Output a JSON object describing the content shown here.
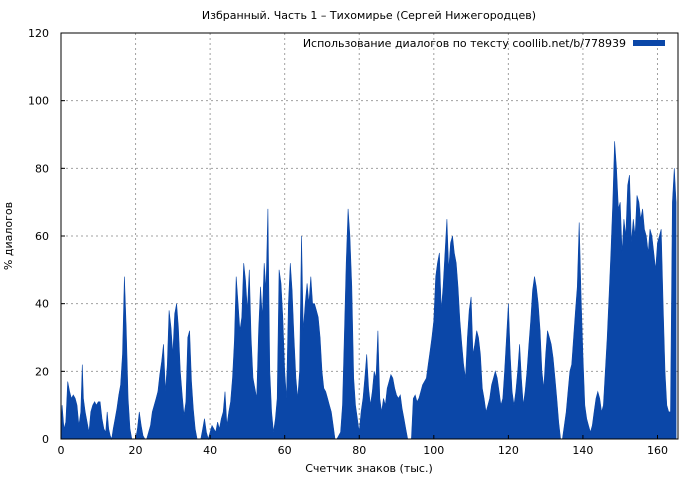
{
  "chart_data": {
    "type": "area",
    "title": "Избранный. Часть 1 – Тихомирье (Сергей Нижегородцев)",
    "xlabel": "Счетчик знаков (тыс.)",
    "ylabel": "% диалогов",
    "xlim": [
      0,
      165.5
    ],
    "ylim": [
      0,
      120
    ],
    "xticks": [
      "0",
      "20",
      "40",
      "60",
      "80",
      "100",
      "120",
      "140",
      "160"
    ],
    "yticks": [
      "0",
      "20",
      "40",
      "60",
      "80",
      "100",
      "120"
    ],
    "grid": true,
    "legend_position": "top-right",
    "series": [
      {
        "name": "Использование диалогов по тексту coollib.net/b/778939",
        "color": "#0b47a8",
        "points": [
          [
            0,
            0
          ],
          [
            0.3,
            10
          ],
          [
            0.8,
            3
          ],
          [
            1.3,
            5
          ],
          [
            1.8,
            17
          ],
          [
            2.3,
            14
          ],
          [
            2.8,
            12
          ],
          [
            3.3,
            13
          ],
          [
            3.8,
            12
          ],
          [
            4.3,
            10
          ],
          [
            4.8,
            4
          ],
          [
            5.3,
            8
          ],
          [
            5.7,
            22
          ],
          [
            6.0,
            12
          ],
          [
            6.5,
            8
          ],
          [
            7.0,
            5
          ],
          [
            7.5,
            2
          ],
          [
            8.0,
            8
          ],
          [
            8.5,
            10
          ],
          [
            9.0,
            11
          ],
          [
            9.5,
            10
          ],
          [
            10.0,
            11
          ],
          [
            10.5,
            11
          ],
          [
            11.0,
            6
          ],
          [
            11.5,
            3
          ],
          [
            12.0,
            2
          ],
          [
            12.4,
            8
          ],
          [
            12.8,
            3
          ],
          [
            13.2,
            1
          ],
          [
            13.6,
            0
          ],
          [
            14.0,
            3
          ],
          [
            14.5,
            6
          ],
          [
            15.0,
            9
          ],
          [
            15.5,
            13
          ],
          [
            16.0,
            16
          ],
          [
            16.5,
            25
          ],
          [
            17.0,
            48
          ],
          [
            17.5,
            33
          ],
          [
            18.0,
            12
          ],
          [
            18.5,
            3
          ],
          [
            19.0,
            0
          ],
          [
            20.0,
            0
          ],
          [
            20.5,
            3
          ],
          [
            21.0,
            8
          ],
          [
            21.5,
            4
          ],
          [
            22.0,
            1
          ],
          [
            22.5,
            0
          ],
          [
            23.0,
            0
          ],
          [
            23.5,
            2
          ],
          [
            24.0,
            4
          ],
          [
            24.5,
            8
          ],
          [
            25.0,
            10
          ],
          [
            25.5,
            12
          ],
          [
            26.0,
            14
          ],
          [
            26.5,
            19
          ],
          [
            27.0,
            23
          ],
          [
            27.5,
            28
          ],
          [
            28.0,
            14
          ],
          [
            28.5,
            22
          ],
          [
            29.0,
            38
          ],
          [
            29.5,
            33
          ],
          [
            30.0,
            25
          ],
          [
            30.5,
            37
          ],
          [
            31.0,
            40
          ],
          [
            31.5,
            33
          ],
          [
            32.0,
            20
          ],
          [
            32.5,
            13
          ],
          [
            33.0,
            7
          ],
          [
            33.5,
            11
          ],
          [
            34.0,
            30
          ],
          [
            34.5,
            32
          ],
          [
            35.0,
            17
          ],
          [
            35.5,
            9
          ],
          [
            36.0,
            3
          ],
          [
            36.5,
            0
          ],
          [
            37.5,
            0
          ],
          [
            38.0,
            3
          ],
          [
            38.5,
            6
          ],
          [
            39.0,
            2
          ],
          [
            39.5,
            0
          ],
          [
            40.0,
            2
          ],
          [
            40.5,
            4
          ],
          [
            41.0,
            3
          ],
          [
            41.5,
            2
          ],
          [
            42.0,
            5
          ],
          [
            42.5,
            3
          ],
          [
            43.0,
            6
          ],
          [
            43.5,
            8
          ],
          [
            44.0,
            14
          ],
          [
            44.5,
            4
          ],
          [
            45.0,
            8
          ],
          [
            45.5,
            11
          ],
          [
            46.0,
            18
          ],
          [
            46.5,
            29
          ],
          [
            47.0,
            48
          ],
          [
            47.5,
            40
          ],
          [
            48.0,
            32
          ],
          [
            48.5,
            36
          ],
          [
            49.0,
            52
          ],
          [
            49.5,
            47
          ],
          [
            50.0,
            38
          ],
          [
            50.5,
            50
          ],
          [
            51.0,
            30
          ],
          [
            51.5,
            18
          ],
          [
            52.0,
            15
          ],
          [
            52.5,
            12
          ],
          [
            53.0,
            32
          ],
          [
            53.5,
            45
          ],
          [
            54.0,
            36
          ],
          [
            54.5,
            52
          ],
          [
            55.0,
            44
          ],
          [
            55.5,
            68
          ],
          [
            56.0,
            20
          ],
          [
            56.5,
            8
          ],
          [
            57.0,
            2
          ],
          [
            57.5,
            6
          ],
          [
            58.0,
            12
          ],
          [
            58.5,
            50
          ],
          [
            59.0,
            46
          ],
          [
            59.5,
            36
          ],
          [
            60.0,
            20
          ],
          [
            60.5,
            12
          ],
          [
            61.0,
            40
          ],
          [
            61.5,
            52
          ],
          [
            62.0,
            44
          ],
          [
            62.5,
            30
          ],
          [
            63.0,
            18
          ],
          [
            63.5,
            12
          ],
          [
            64.0,
            20
          ],
          [
            64.5,
            60
          ],
          [
            65.0,
            32
          ],
          [
            65.5,
            40
          ],
          [
            66.0,
            46
          ],
          [
            66.5,
            40
          ],
          [
            67.0,
            48
          ],
          [
            67.5,
            40
          ],
          [
            68.0,
            40
          ],
          [
            68.5,
            38
          ],
          [
            69.0,
            36
          ],
          [
            69.5,
            30
          ],
          [
            70.0,
            20
          ],
          [
            70.5,
            15
          ],
          [
            71.0,
            14
          ],
          [
            71.5,
            12
          ],
          [
            72.0,
            10
          ],
          [
            72.5,
            8
          ],
          [
            73.0,
            4
          ],
          [
            73.5,
            0
          ],
          [
            74.0,
            0
          ],
          [
            75.0,
            2
          ],
          [
            75.5,
            10
          ],
          [
            76.0,
            30
          ],
          [
            76.5,
            52
          ],
          [
            77.0,
            68
          ],
          [
            77.5,
            60
          ],
          [
            78.0,
            45
          ],
          [
            78.5,
            18
          ],
          [
            79.0,
            10
          ],
          [
            79.5,
            6
          ],
          [
            80.0,
            2
          ],
          [
            80.5,
            8
          ],
          [
            81.0,
            12
          ],
          [
            81.5,
            18
          ],
          [
            82.0,
            25
          ],
          [
            82.5,
            15
          ],
          [
            83.0,
            10
          ],
          [
            83.5,
            14
          ],
          [
            84.0,
            20
          ],
          [
            84.5,
            18
          ],
          [
            85.0,
            32
          ],
          [
            85.5,
            12
          ],
          [
            86.0,
            8
          ],
          [
            86.5,
            12
          ],
          [
            87.0,
            10
          ],
          [
            87.5,
            15
          ],
          [
            88.0,
            17
          ],
          [
            88.5,
            19
          ],
          [
            89.0,
            18
          ],
          [
            89.5,
            15
          ],
          [
            90.0,
            13
          ],
          [
            90.5,
            12
          ],
          [
            91.0,
            13
          ],
          [
            91.5,
            9
          ],
          [
            92.0,
            6
          ],
          [
            92.5,
            3
          ],
          [
            93.0,
            0
          ],
          [
            94.0,
            0
          ],
          [
            94.5,
            12
          ],
          [
            95.0,
            13
          ],
          [
            95.5,
            11
          ],
          [
            96.0,
            12
          ],
          [
            96.5,
            14
          ],
          [
            97.0,
            16
          ],
          [
            97.5,
            17
          ],
          [
            98.0,
            18
          ],
          [
            98.5,
            22
          ],
          [
            99.0,
            26
          ],
          [
            99.5,
            30
          ],
          [
            100.0,
            35
          ],
          [
            100.5,
            48
          ],
          [
            101.0,
            52
          ],
          [
            101.5,
            55
          ],
          [
            102.0,
            38
          ],
          [
            102.5,
            45
          ],
          [
            103.0,
            55
          ],
          [
            103.5,
            65
          ],
          [
            104.0,
            50
          ],
          [
            104.5,
            58
          ],
          [
            105.0,
            60
          ],
          [
            105.5,
            55
          ],
          [
            106.0,
            52
          ],
          [
            106.5,
            45
          ],
          [
            107.0,
            35
          ],
          [
            107.5,
            28
          ],
          [
            108.0,
            22
          ],
          [
            108.5,
            18
          ],
          [
            109.0,
            30
          ],
          [
            109.5,
            38
          ],
          [
            110.0,
            42
          ],
          [
            110.5,
            25
          ],
          [
            111.0,
            28
          ],
          [
            111.5,
            32
          ],
          [
            112.0,
            30
          ],
          [
            112.5,
            25
          ],
          [
            113.0,
            15
          ],
          [
            113.5,
            12
          ],
          [
            114.0,
            8
          ],
          [
            114.5,
            10
          ],
          [
            115.0,
            12
          ],
          [
            115.5,
            16
          ],
          [
            116.0,
            18
          ],
          [
            116.5,
            20
          ],
          [
            117.0,
            18
          ],
          [
            117.5,
            14
          ],
          [
            118.0,
            10
          ],
          [
            118.5,
            12
          ],
          [
            119.0,
            20
          ],
          [
            119.5,
            30
          ],
          [
            120.0,
            40
          ],
          [
            120.5,
            25
          ],
          [
            121.0,
            14
          ],
          [
            121.5,
            10
          ],
          [
            122.0,
            14
          ],
          [
            122.5,
            20
          ],
          [
            123.0,
            28
          ],
          [
            123.5,
            18
          ],
          [
            124.0,
            10
          ],
          [
            124.5,
            14
          ],
          [
            125.0,
            20
          ],
          [
            125.5,
            28
          ],
          [
            126.0,
            35
          ],
          [
            126.5,
            44
          ],
          [
            127.0,
            48
          ],
          [
            127.5,
            45
          ],
          [
            128.0,
            40
          ],
          [
            128.5,
            32
          ],
          [
            129.0,
            20
          ],
          [
            129.5,
            15
          ],
          [
            130.0,
            25
          ],
          [
            130.5,
            32
          ],
          [
            131.0,
            30
          ],
          [
            131.5,
            28
          ],
          [
            132.0,
            24
          ],
          [
            132.5,
            18
          ],
          [
            133.0,
            12
          ],
          [
            133.5,
            5
          ],
          [
            134.0,
            0
          ],
          [
            134.5,
            0
          ],
          [
            135.0,
            4
          ],
          [
            135.5,
            8
          ],
          [
            136.0,
            14
          ],
          [
            136.5,
            20
          ],
          [
            137.0,
            22
          ],
          [
            137.5,
            30
          ],
          [
            138.0,
            38
          ],
          [
            138.5,
            45
          ],
          [
            139.0,
            64
          ],
          [
            139.5,
            42
          ],
          [
            140.0,
            25
          ],
          [
            140.5,
            10
          ],
          [
            141.0,
            6
          ],
          [
            141.5,
            4
          ],
          [
            142.0,
            2
          ],
          [
            142.5,
            4
          ],
          [
            143.0,
            8
          ],
          [
            143.5,
            12
          ],
          [
            144.0,
            14
          ],
          [
            144.5,
            12
          ],
          [
            145.0,
            8
          ],
          [
            145.5,
            10
          ],
          [
            146.0,
            20
          ],
          [
            146.5,
            30
          ],
          [
            147.0,
            42
          ],
          [
            147.5,
            55
          ],
          [
            148.0,
            70
          ],
          [
            148.5,
            88
          ],
          [
            149.0,
            80
          ],
          [
            149.5,
            68
          ],
          [
            150.0,
            70
          ],
          [
            150.5,
            55
          ],
          [
            151.0,
            65
          ],
          [
            151.5,
            60
          ],
          [
            152.0,
            75
          ],
          [
            152.5,
            78
          ],
          [
            153.0,
            58
          ],
          [
            153.5,
            65
          ],
          [
            154.0,
            60
          ],
          [
            154.5,
            72
          ],
          [
            155.0,
            70
          ],
          [
            155.5,
            65
          ],
          [
            156.0,
            68
          ],
          [
            156.5,
            62
          ],
          [
            157.0,
            60
          ],
          [
            157.5,
            55
          ],
          [
            158.0,
            62
          ],
          [
            158.5,
            60
          ],
          [
            159.0,
            55
          ],
          [
            159.5,
            50
          ],
          [
            160.0,
            58
          ],
          [
            160.5,
            60
          ],
          [
            161.0,
            62
          ],
          [
            161.5,
            40
          ],
          [
            162.0,
            20
          ],
          [
            162.5,
            10
          ],
          [
            163.0,
            8
          ],
          [
            163.5,
            8
          ],
          [
            164.0,
            70
          ],
          [
            164.5,
            80
          ],
          [
            165.0,
            70
          ]
        ]
      }
    ]
  }
}
